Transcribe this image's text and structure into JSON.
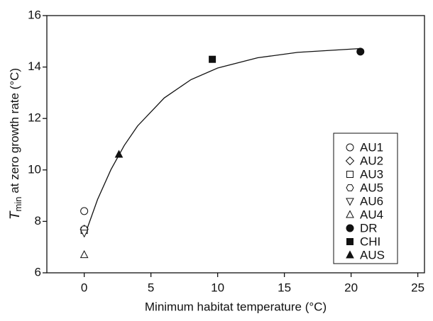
{
  "chart_data": {
    "type": "scatter",
    "x_label": "Minimum habitat temperature (°C)",
    "y_label": {
      "symbol": "T",
      "subscript": "min",
      "text": " at zero growth rate (°C)"
    },
    "xlim": [
      -2.8,
      25.5
    ],
    "xticks": [
      0,
      5,
      10,
      15,
      20,
      25
    ],
    "ylim": [
      6,
      16
    ],
    "yticks": [
      6,
      8,
      10,
      12,
      14,
      16
    ],
    "series": [
      {
        "name": "AU1",
        "marker": "circle",
        "filled": false,
        "color": "#111111",
        "x": [
          0
        ],
        "values": [
          8.4
        ]
      },
      {
        "name": "AU2",
        "marker": "diamond",
        "filled": false,
        "color": "#111111",
        "x": [
          0
        ],
        "values": [
          7.7
        ]
      },
      {
        "name": "AU3",
        "marker": "square",
        "filled": false,
        "color": "#111111",
        "x": [
          0
        ],
        "values": [
          7.65
        ]
      },
      {
        "name": "AU5",
        "marker": "hexagon",
        "filled": false,
        "color": "#111111",
        "x": [
          0
        ],
        "values": [
          7.7
        ]
      },
      {
        "name": "AU6",
        "marker": "triangle-down",
        "filled": false,
        "color": "#111111",
        "x": [
          0
        ],
        "values": [
          7.55
        ]
      },
      {
        "name": "AU4",
        "marker": "triangle-up",
        "filled": false,
        "color": "#111111",
        "x": [
          0
        ],
        "values": [
          6.7
        ]
      },
      {
        "name": "DR",
        "marker": "circle",
        "filled": true,
        "color": "#111111",
        "x": [
          20.7
        ],
        "values": [
          14.6
        ]
      },
      {
        "name": "CHI",
        "marker": "square",
        "filled": true,
        "color": "#111111",
        "x": [
          9.6
        ],
        "values": [
          14.3
        ]
      },
      {
        "name": "AUS",
        "marker": "triangle-up",
        "filled": true,
        "color": "#111111",
        "x": [
          2.6
        ],
        "values": [
          10.6
        ]
      }
    ],
    "curve": {
      "color": "#111111",
      "x": [
        0,
        1,
        2,
        3,
        4,
        6,
        8,
        10,
        13,
        16,
        20.7
      ],
      "values": [
        7.4,
        8.85,
        10.01,
        10.95,
        11.71,
        12.8,
        13.51,
        13.96,
        14.36,
        14.57,
        14.72
      ]
    }
  }
}
